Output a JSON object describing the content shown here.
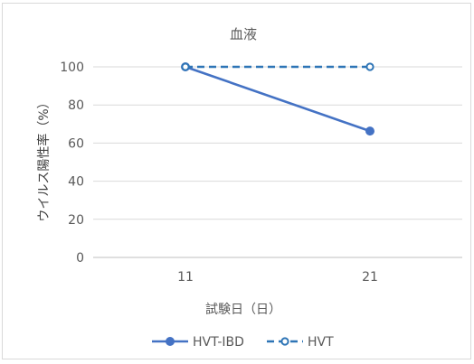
{
  "chart_data": {
    "type": "line",
    "title": "血液",
    "xlabel": "試験日（日）",
    "ylabel": "ウイルス陽性率（%）",
    "categories": [
      "11",
      "21"
    ],
    "ylim": [
      0,
      100
    ],
    "yticks": [
      0,
      20,
      40,
      60,
      80,
      100
    ],
    "grid": "horizontal",
    "legend_position": "bottom",
    "series": [
      {
        "name": "HVT-IBD",
        "values": [
          100,
          66.3
        ],
        "color": "#4472c4",
        "line": "solid",
        "marker": "filled-circle"
      },
      {
        "name": "HVT",
        "values": [
          100,
          100
        ],
        "color": "#2e75b6",
        "line": "dashed",
        "marker": "open-circle"
      }
    ]
  }
}
